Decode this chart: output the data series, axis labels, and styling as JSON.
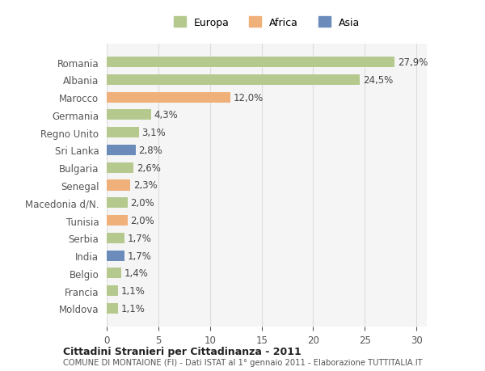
{
  "countries": [
    "Romania",
    "Albania",
    "Marocco",
    "Germania",
    "Regno Unito",
    "Sri Lanka",
    "Bulgaria",
    "Senegal",
    "Macedonia d/N.",
    "Tunisia",
    "Serbia",
    "India",
    "Belgio",
    "Francia",
    "Moldova"
  ],
  "values": [
    27.9,
    24.5,
    12.0,
    4.3,
    3.1,
    2.8,
    2.6,
    2.3,
    2.0,
    2.0,
    1.7,
    1.7,
    1.4,
    1.1,
    1.1
  ],
  "continents": [
    "Europa",
    "Europa",
    "Africa",
    "Europa",
    "Europa",
    "Asia",
    "Europa",
    "Africa",
    "Europa",
    "Africa",
    "Europa",
    "Asia",
    "Europa",
    "Europa",
    "Europa"
  ],
  "labels": [
    "27,9%",
    "24,5%",
    "12,0%",
    "4,3%",
    "3,1%",
    "2,8%",
    "2,6%",
    "2,3%",
    "2,0%",
    "2,0%",
    "1,7%",
    "1,7%",
    "1,4%",
    "1,1%",
    "1,1%"
  ],
  "colors": {
    "Europa": "#b5c98e",
    "Africa": "#f0b07a",
    "Asia": "#6b8cba"
  },
  "background_color": "#ffffff",
  "plot_bg_color": "#f5f5f5",
  "title1": "Cittadini Stranieri per Cittadinanza - 2011",
  "title2": "COMUNE DI MONTAIONE (FI) - Dati ISTAT al 1° gennaio 2011 - Elaborazione TUTTITALIA.IT",
  "xlim": [
    0,
    31
  ],
  "xticks": [
    0,
    5,
    10,
    15,
    20,
    25,
    30
  ]
}
